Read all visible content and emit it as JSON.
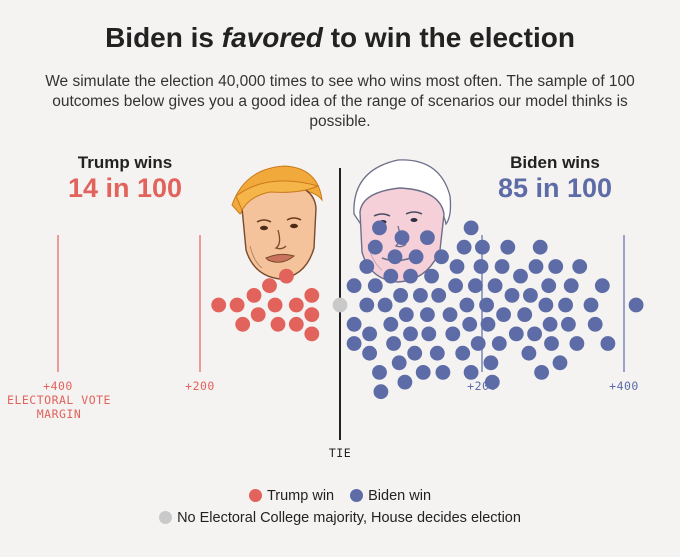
{
  "title_pre": "Biden is ",
  "title_em": "favored",
  "title_post": " to win the election",
  "subtitle": "We simulate the election 40,000 times to see who wins most often. The sample of 100 outcomes below gives you a good idea of the range of scenarios our model thinks is possible.",
  "trump": {
    "label": "Trump wins",
    "count": "14 in 100",
    "color": "#e2625c"
  },
  "biden": {
    "label": "Biden wins",
    "count": "85 in 100",
    "color": "#5d6ba6"
  },
  "tie_color": "#c9c9c9",
  "axis": {
    "trump_400": "+400",
    "trump_200": "+200",
    "trump_axis_title": [
      "ELECTORAL VOTE",
      "MARGIN"
    ],
    "biden_200": "+200",
    "biden_400": "+400",
    "tie": "TIE"
  },
  "legend": {
    "trump": "Trump win",
    "biden": "Biden win",
    "tie": "No Electoral College majority, House decides election"
  },
  "chart_data": {
    "type": "scatter",
    "description": "Beeswarm of 100 simulated outcomes by electoral vote margin",
    "x_unit": "electoral vote margin (negative = Trump, positive = Biden)",
    "xlim": [
      -400,
      400
    ],
    "ticks": [
      -400,
      -200,
      0,
      200,
      400
    ],
    "outcome_counts": {
      "trump": 14,
      "biden": 85,
      "tie": 1
    },
    "points": {
      "trump": [
        -172,
        -146,
        -138,
        -122,
        -116,
        -100,
        -92,
        -88,
        -76,
        -62,
        -62,
        -40,
        -40,
        -40
      ],
      "tie": [
        0
      ],
      "biden": [
        20,
        20,
        20,
        38,
        38,
        42,
        42,
        50,
        50,
        56,
        56,
        58,
        64,
        72,
        72,
        76,
        78,
        84,
        86,
        88,
        92,
        94,
        100,
        100,
        106,
        108,
        114,
        118,
        124,
        124,
        126,
        130,
        138,
        140,
        144,
        146,
        156,
        160,
        164,
        166,
        174,
        176,
        180,
        184,
        186,
        186,
        192,
        196,
        200,
        202,
        208,
        210,
        214,
        216,
        220,
        226,
        230,
        232,
        238,
        244,
        250,
        256,
        262,
        268,
        270,
        276,
        278,
        284,
        286,
        292,
        296,
        298,
        300,
        306,
        312,
        320,
        324,
        328,
        336,
        340,
        356,
        362,
        372,
        380,
        420
      ]
    }
  }
}
